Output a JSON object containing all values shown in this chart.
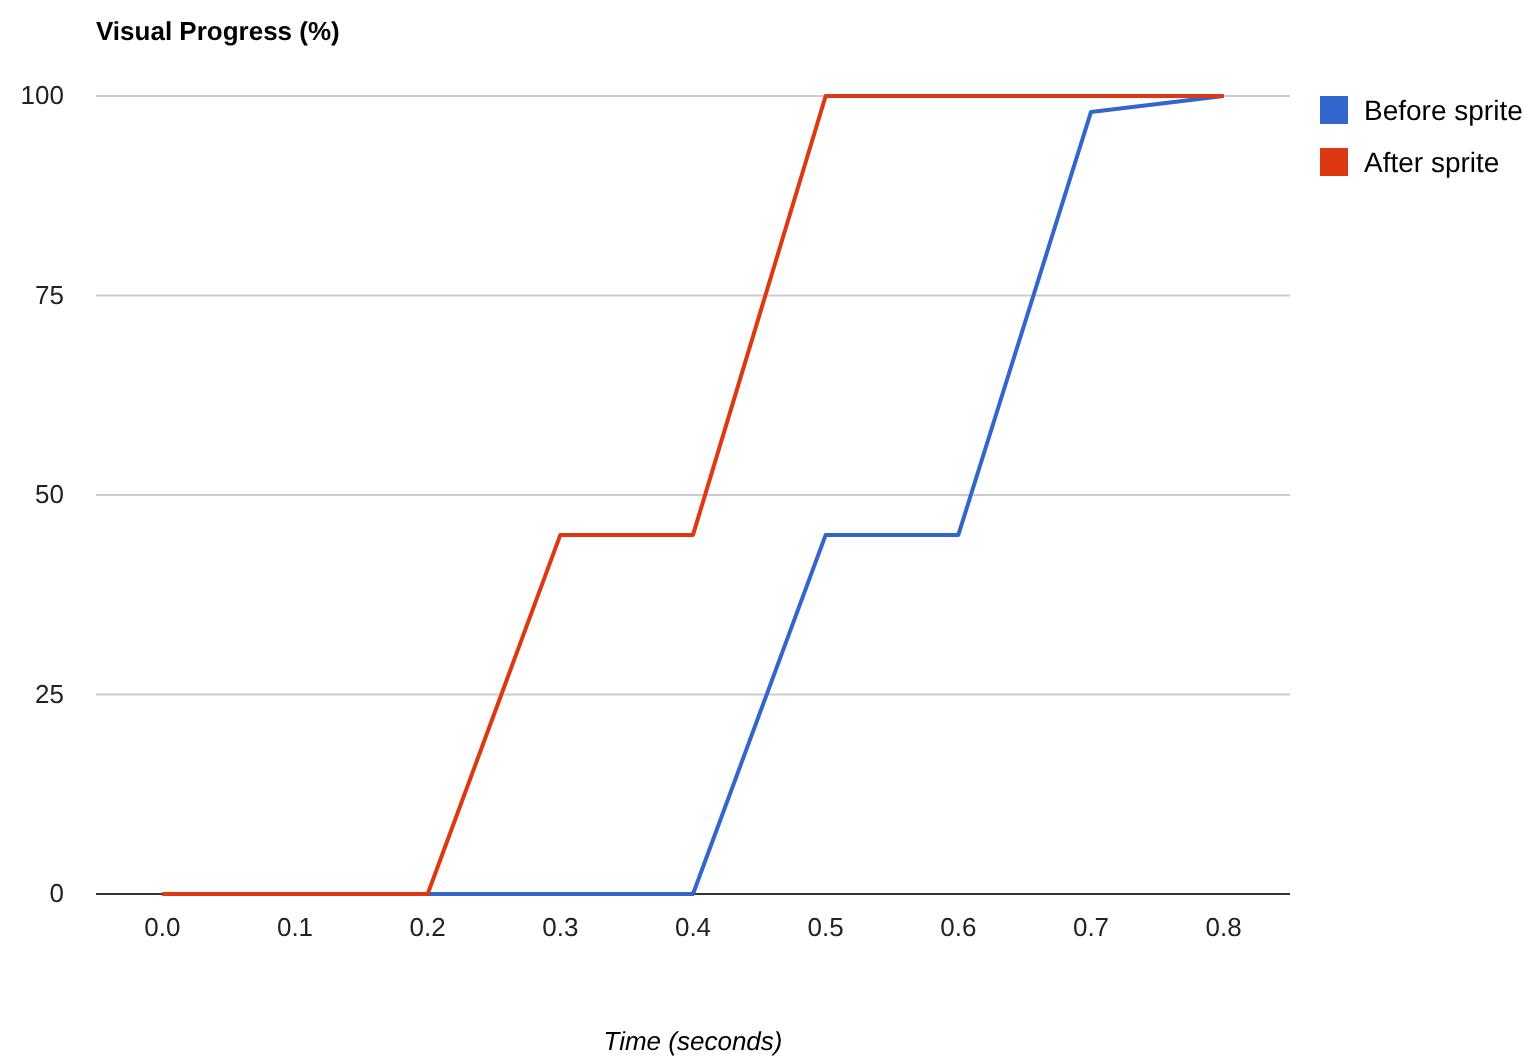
{
  "chart_data": {
    "type": "line",
    "title": "Visual Progress (%)",
    "xlabel": "Time (seconds)",
    "categories": [
      "0.0",
      "0.1",
      "0.2",
      "0.3",
      "0.4",
      "0.5",
      "0.6",
      "0.7",
      "0.8"
    ],
    "series": [
      {
        "name": "Before sprite",
        "color": "#3366cc",
        "values": [
          0,
          0,
          0,
          0,
          0,
          45,
          45,
          98,
          100
        ]
      },
      {
        "name": "After sprite",
        "color": "#dc3912",
        "values": [
          0,
          0,
          0,
          45,
          45,
          100,
          100,
          100,
          100
        ]
      }
    ],
    "ylim": [
      0,
      100
    ],
    "yticks": [
      0,
      25,
      50,
      75,
      100
    ],
    "grid": "y",
    "legend": "right",
    "marker": "none",
    "line_style": "solid"
  }
}
